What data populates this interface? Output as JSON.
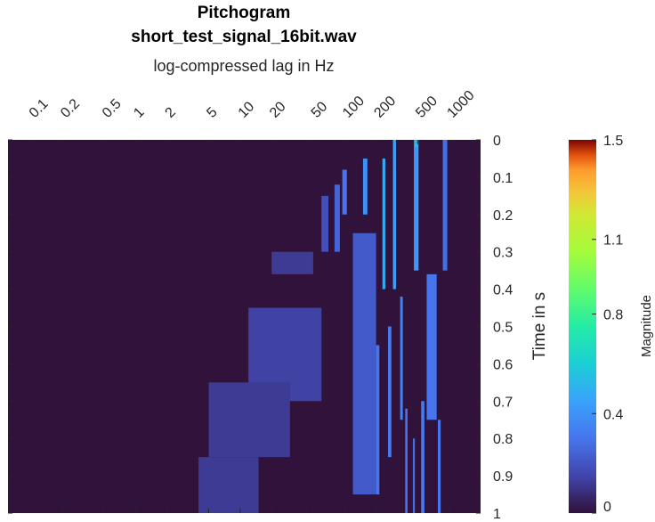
{
  "chart_data": {
    "type": "heatmap",
    "title": "Pitchogram",
    "subtitle": "short_test_signal_16bit.wav",
    "xlabel": "log-compressed lag in Hz",
    "ylabel": "Time in s",
    "colorbar_label": "Magnitude",
    "colormap": "turbo",
    "x_scale": "log",
    "xlim": [
      0.06,
      2000
    ],
    "ylim": [
      0,
      1
    ],
    "y_reversed": true,
    "clim": [
      0,
      1.5
    ],
    "x_ticks": [
      "0.1",
      "0.2",
      "0.5",
      "1",
      "2",
      "5",
      "10",
      "20",
      "50",
      "100",
      "200",
      "500",
      "1000"
    ],
    "x_tick_values": [
      0.1,
      0.2,
      0.5,
      1,
      2,
      5,
      10,
      20,
      50,
      100,
      200,
      500,
      1000
    ],
    "y_ticks": [
      "0",
      "0.1",
      "0.2",
      "0.3",
      "0.4",
      "0.5",
      "0.6",
      "0.7",
      "0.8",
      "0.9",
      "1"
    ],
    "y_tick_values": [
      0,
      0.1,
      0.2,
      0.3,
      0.4,
      0.5,
      0.6,
      0.7,
      0.8,
      0.9,
      1.0
    ],
    "colorbar_ticks": [
      "0",
      "0.4",
      "0.8",
      "1.1",
      "1.5"
    ],
    "colorbar_tick_values": [
      0,
      0.4,
      0.8,
      1.1,
      1.5
    ],
    "background_value": 0.02,
    "regions": [
      {
        "x": [
          460,
          510
        ],
        "y": [
          0.0,
          0.35
        ],
        "value": 0.42
      },
      {
        "x": [
          470,
          500
        ],
        "y": [
          0.0,
          0.02
        ],
        "value": 0.55
      },
      {
        "x": [
          870,
          960
        ],
        "y": [
          0.0,
          0.35
        ],
        "value": 0.28
      },
      {
        "x": [
          610,
          760
        ],
        "y": [
          0.36,
          0.75
        ],
        "value": 0.3
      },
      {
        "x": [
          290,
          310
        ],
        "y": [
          0.0,
          0.4
        ],
        "value": 0.45
      },
      {
        "x": [
          230,
          245
        ],
        "y": [
          0.05,
          0.4
        ],
        "value": 0.48
      },
      {
        "x": [
          150,
          165
        ],
        "y": [
          0.05,
          0.2
        ],
        "value": 0.4
      },
      {
        "x": [
          95,
          105
        ],
        "y": [
          0.08,
          0.2
        ],
        "value": 0.3
      },
      {
        "x": [
          80,
          90
        ],
        "y": [
          0.12,
          0.3
        ],
        "value": 0.25
      },
      {
        "x": [
          60,
          70
        ],
        "y": [
          0.15,
          0.3
        ],
        "value": 0.18
      },
      {
        "x": [
          20,
          50
        ],
        "y": [
          0.3,
          0.36
        ],
        "value": 0.12
      },
      {
        "x": [
          12,
          60
        ],
        "y": [
          0.45,
          0.7
        ],
        "value": 0.14
      },
      {
        "x": [
          5,
          30
        ],
        "y": [
          0.65,
          0.85
        ],
        "value": 0.12
      },
      {
        "x": [
          4,
          15
        ],
        "y": [
          0.85,
          1.0
        ],
        "value": 0.12
      },
      {
        "x": [
          340,
          360
        ],
        "y": [
          0.42,
          0.75
        ],
        "value": 0.35
      },
      {
        "x": [
          260,
          280
        ],
        "y": [
          0.5,
          0.85
        ],
        "value": 0.32
      },
      {
        "x": [
          200,
          215
        ],
        "y": [
          0.55,
          0.95
        ],
        "value": 0.3
      },
      {
        "x": [
          540,
          580
        ],
        "y": [
          0.7,
          1.0
        ],
        "value": 0.32
      },
      {
        "x": [
          780,
          830
        ],
        "y": [
          0.75,
          1.0
        ],
        "value": 0.3
      },
      {
        "x": [
          380,
          400
        ],
        "y": [
          0.72,
          1.0
        ],
        "value": 0.3
      },
      {
        "x": [
          450,
          470
        ],
        "y": [
          0.8,
          1.0
        ],
        "value": 0.28
      },
      {
        "x": [
          120,
          200
        ],
        "y": [
          0.25,
          0.95
        ],
        "value": 0.22
      }
    ]
  }
}
